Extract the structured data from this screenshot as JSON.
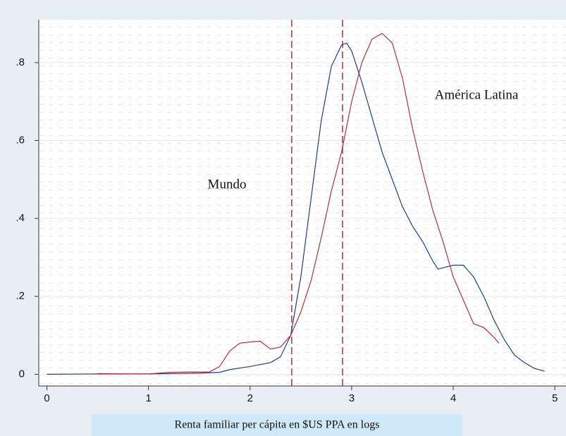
{
  "chart_data": {
    "type": "line",
    "x_label": "Renta familiar per cápita en $US PPA en logs",
    "series": [
      {
        "name": "Mundo",
        "color": "#1f3d8c",
        "x": [
          0,
          0.5,
          1,
          1.5,
          1.7,
          1.8,
          2,
          2.1,
          2.2,
          2.3,
          2.4,
          2.5,
          2.6,
          2.7,
          2.8,
          2.9,
          2.95,
          3,
          3.1,
          3.2,
          3.3,
          3.4,
          3.5,
          3.6,
          3.7,
          3.8,
          3.85,
          4,
          4.1,
          4.2,
          4.3,
          4.4,
          4.5,
          4.6,
          4.7,
          4.8,
          4.9
        ],
        "values": [
          0,
          0.001,
          0.001,
          0.003,
          0.005,
          0.012,
          0.02,
          0.025,
          0.03,
          0.045,
          0.1,
          0.25,
          0.45,
          0.65,
          0.79,
          0.845,
          0.85,
          0.83,
          0.75,
          0.66,
          0.57,
          0.5,
          0.43,
          0.38,
          0.34,
          0.29,
          0.27,
          0.28,
          0.28,
          0.25,
          0.2,
          0.14,
          0.09,
          0.05,
          0.03,
          0.015,
          0.008
        ]
      },
      {
        "name": "América Latina",
        "color": "#b0303f",
        "x": [
          0.5,
          0.8,
          1,
          1.2,
          1.4,
          1.6,
          1.7,
          1.8,
          1.9,
          2,
          2.1,
          2.2,
          2.3,
          2.4,
          2.5,
          2.6,
          2.7,
          2.8,
          2.9,
          3,
          3.1,
          3.2,
          3.3,
          3.4,
          3.5,
          3.6,
          3.7,
          3.8,
          3.9,
          4,
          4.1,
          4.2,
          4.3,
          4.4,
          4.45
        ],
        "values": [
          0.002,
          0.001,
          0.001,
          0.005,
          0.006,
          0.006,
          0.02,
          0.06,
          0.08,
          0.083,
          0.085,
          0.065,
          0.07,
          0.1,
          0.16,
          0.24,
          0.35,
          0.47,
          0.57,
          0.7,
          0.8,
          0.86,
          0.875,
          0.85,
          0.76,
          0.63,
          0.52,
          0.42,
          0.34,
          0.25,
          0.19,
          0.13,
          0.12,
          0.095,
          0.08
        ]
      }
    ],
    "vlines": [
      2.41,
      2.91
    ],
    "vline_color": "#b0303f",
    "xlim": [
      -0.08,
      5.11
    ],
    "xticks": [
      0,
      1,
      2,
      3,
      4,
      5
    ],
    "ylim": [
      -0.03,
      0.91
    ],
    "yticks": [
      0,
      {
        "value": 0.2,
        "label": ".2"
      },
      {
        "value": 0.4,
        "label": ".4"
      },
      {
        "value": 0.6,
        "label": ".6"
      },
      {
        "value": 0.8,
        "label": ".8"
      }
    ],
    "grid": true
  }
}
